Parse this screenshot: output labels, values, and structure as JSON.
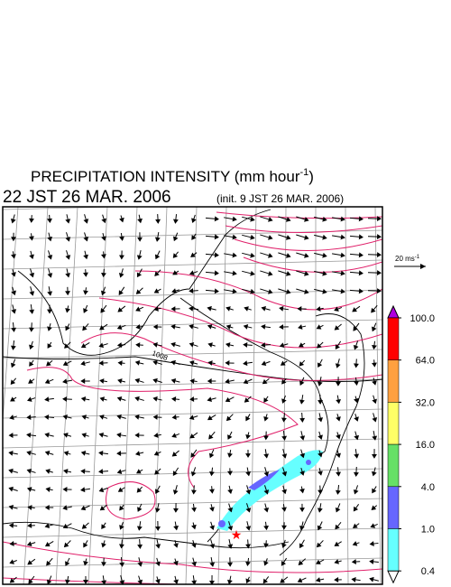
{
  "header": {
    "title": "PRECIPITATION INTENSITY (mm hour",
    "title_exponent": "-1",
    "title_close": ")",
    "time": "22 JST 26 MAR. 2006",
    "init": "(init. 9 JST 26 MAR. 2006)"
  },
  "scale": {
    "label": "20 ms",
    "exponent": "-1"
  },
  "map": {
    "contour_label": "1008"
  },
  "colorbar": {
    "levels": [
      {
        "value": 100,
        "label": "100.0"
      },
      {
        "value": 64,
        "label": "64.0"
      },
      {
        "value": 32,
        "label": "32.0"
      },
      {
        "value": 16,
        "label": "16.0"
      },
      {
        "value": 4,
        "label": "4.0"
      },
      {
        "value": 1,
        "label": "1.0"
      },
      {
        "value": 0.4,
        "label": "0.4"
      }
    ],
    "colors": [
      "#ff0000",
      "#ffa040",
      "#ffff66",
      "#66e066",
      "#6666ff",
      "#66ffff"
    ],
    "over_color": "#b000e0",
    "under_color": "#ffffff"
  }
}
